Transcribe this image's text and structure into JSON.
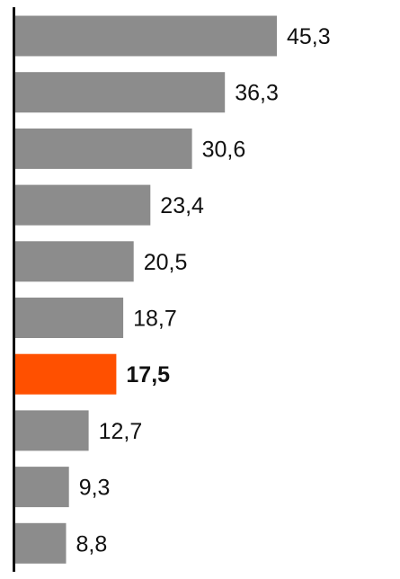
{
  "chart_data": {
    "type": "bar",
    "orientation": "horizontal",
    "values": [
      45.3,
      36.3,
      30.6,
      23.4,
      20.5,
      18.7,
      17.5,
      12.7,
      9.3,
      8.8
    ],
    "labels": [
      "45,3",
      "36,3",
      "30,6",
      "23,4",
      "20,5",
      "18,7",
      "17,5",
      "12,7",
      "9,3",
      "8,8"
    ],
    "highlight_index": 6,
    "colors": {
      "bar": "#8c8c8c",
      "highlight": "#ff5000",
      "axis": "#111111"
    },
    "xlim": [
      0,
      45.3
    ]
  }
}
